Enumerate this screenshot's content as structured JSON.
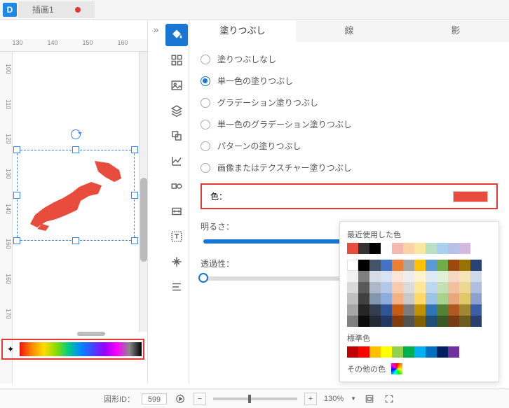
{
  "tab": {
    "title": "插画1"
  },
  "ruler": {
    "h": [
      "130",
      "140",
      "150",
      "160"
    ],
    "v": [
      "100",
      "110",
      "120",
      "130",
      "140",
      "150",
      "160",
      "170"
    ]
  },
  "toolrail": [
    "fill",
    "grid",
    "image",
    "layers",
    "arrange",
    "chart",
    "shapes",
    "dimension",
    "text",
    "transform",
    "align"
  ],
  "panel": {
    "tabs": {
      "fill": "塗りつぶし",
      "line": "線",
      "shadow": "影"
    },
    "radios": [
      {
        "key": "none",
        "label": "塗りつぶしなし"
      },
      {
        "key": "solid",
        "label": "単一色の塗りつぶし"
      },
      {
        "key": "gradient",
        "label": "グラデーション塗りつぶし"
      },
      {
        "key": "solidgrad",
        "label": "単一色のグラデーション塗りつぶし"
      },
      {
        "key": "pattern",
        "label": "パターンの塗りつぶし"
      },
      {
        "key": "texture",
        "label": "画像またはテクスチャー塗りつぶし"
      }
    ],
    "selected": "solid",
    "color_label": "色：",
    "color_value": "#e74c3c",
    "brightness": {
      "label": "明るさ：",
      "value": 50
    },
    "opacity": {
      "label": "透過性：",
      "value": 0
    }
  },
  "popup": {
    "recent_label": "最近使用した色",
    "recent": [
      "#e74c3c",
      "#333333",
      "#000000",
      "",
      "#f5b8b0",
      "#fad2a8",
      "#f9e7a0",
      "#b8e0c4",
      "#a8d0f0",
      "#b8c0e8",
      "#d4b8e0"
    ],
    "theme": [
      [
        "#ffffff",
        "#000000",
        "#44546a",
        "#4472c4",
        "#ed7d31",
        "#a5a5a5",
        "#ffc000",
        "#5b9bd5",
        "#70ad47",
        "#9e480e",
        "#997300",
        "#264478"
      ],
      [
        "#f2f2f2",
        "#7f7f7f",
        "#d6dce5",
        "#d9e2f3",
        "#fbe5d6",
        "#ededed",
        "#fff2cc",
        "#deebf7",
        "#e2f0d9",
        "#f7d8c4",
        "#f5e6b8",
        "#cfd9ec"
      ],
      [
        "#d9d9d9",
        "#595959",
        "#adb9ca",
        "#b4c7e7",
        "#f8cbad",
        "#dbdbdb",
        "#ffe699",
        "#bdd7ee",
        "#c5e0b4",
        "#f0c0a0",
        "#ecd890",
        "#aebde0"
      ],
      [
        "#bfbfbf",
        "#404040",
        "#8497b0",
        "#8faadc",
        "#f4b183",
        "#c9c9c9",
        "#ffd966",
        "#9dc3e6",
        "#a9d18e",
        "#e8a87c",
        "#e2c968",
        "#8da0d0"
      ],
      [
        "#a6a6a6",
        "#262626",
        "#333f50",
        "#2f5597",
        "#c55a11",
        "#7b7b7b",
        "#bf9000",
        "#2e75b6",
        "#548235",
        "#b05820",
        "#a08830",
        "#3a5fa8"
      ],
      [
        "#808080",
        "#0d0d0d",
        "#222a35",
        "#1f3864",
        "#843c0c",
        "#525252",
        "#806000",
        "#1f4e79",
        "#385723",
        "#783c14",
        "#6c5c20",
        "#283f70"
      ]
    ],
    "standard_label": "標準色",
    "standard": [
      "#c00000",
      "#ff0000",
      "#ffc000",
      "#ffff00",
      "#92d050",
      "#00b050",
      "#00b0f0",
      "#0070c0",
      "#002060",
      "#7030a0"
    ],
    "other_label": "その他の色"
  },
  "status": {
    "shape_id_label": "図形ID：",
    "shape_id": "599",
    "zoom": "130%"
  }
}
